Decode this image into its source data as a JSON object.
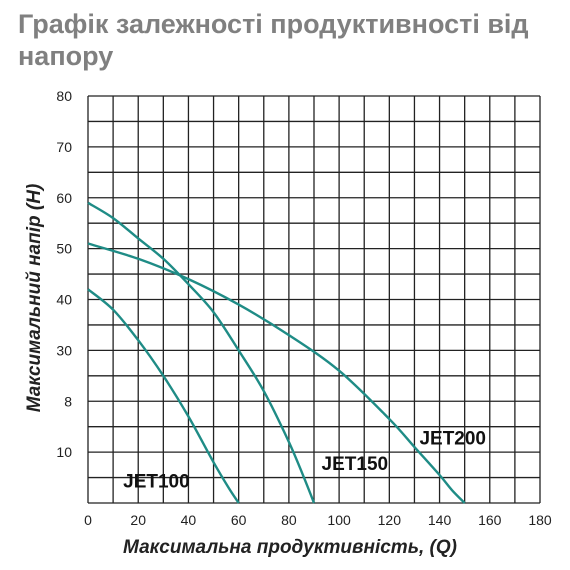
{
  "title": "Графік залежності продуктивності від напору",
  "chart_data": {
    "type": "line",
    "xlabel": "Максимальна продуктивність, (Q)",
    "ylabel": "Максимальний напір (H)",
    "xlim": [
      0,
      180
    ],
    "x_ticks": [
      "0",
      "20",
      "40",
      "60",
      "80",
      "100",
      "120",
      "140",
      "160",
      "180"
    ],
    "y_ticks": [
      "",
      "10",
      "8",
      "30",
      "40",
      "50",
      "60",
      "70",
      "80"
    ],
    "grid": true,
    "line_color": "#1f8c86",
    "series": [
      {
        "name": "JET100",
        "x": [
          0,
          10,
          20,
          30,
          40,
          50,
          56,
          60
        ],
        "y": [
          42,
          38,
          32,
          25,
          17,
          8,
          3,
          0
        ]
      },
      {
        "name": "JET150",
        "x": [
          0,
          10,
          20,
          30,
          40,
          50,
          60,
          70,
          80,
          86,
          90
        ],
        "y": [
          59,
          56,
          52,
          48,
          43,
          37.5,
          30,
          22,
          12,
          5,
          0
        ]
      },
      {
        "name": "JET200",
        "x": [
          0,
          20,
          40,
          60,
          80,
          100,
          120,
          130,
          140,
          145,
          150
        ],
        "y": [
          51,
          48,
          44,
          39,
          33,
          26,
          16.5,
          11,
          5.5,
          2.5,
          0
        ]
      }
    ],
    "labels": [
      {
        "text": "JET100",
        "x": 14,
        "y": 3
      },
      {
        "text": "JET150",
        "x": 93,
        "y": 6.5
      },
      {
        "text": "JET200",
        "x": 132,
        "y": 11.5
      }
    ]
  }
}
